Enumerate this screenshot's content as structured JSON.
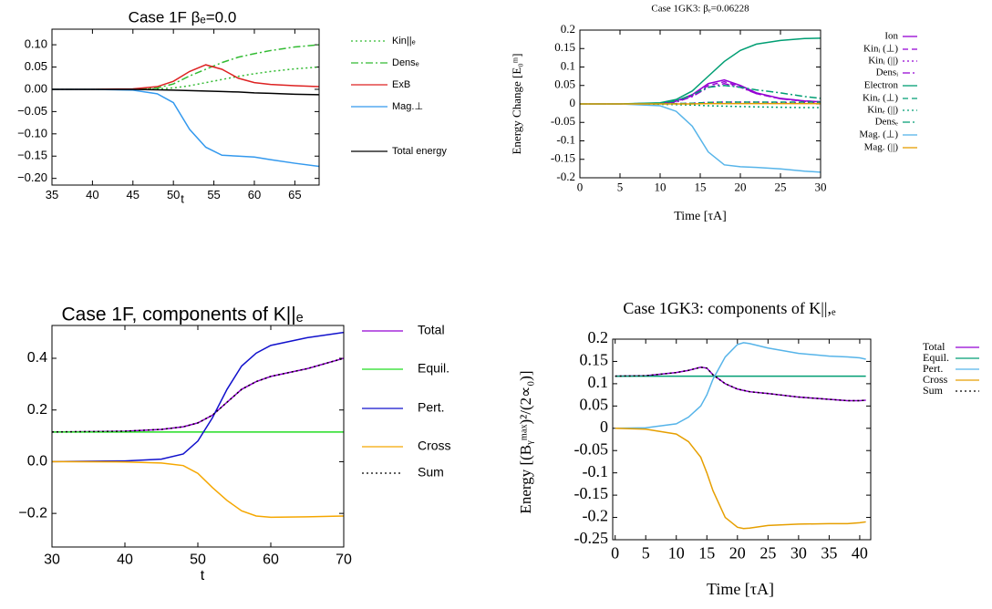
{
  "chart_data": [
    {
      "type": "line",
      "title": "Case 1F  βₑ=0.0",
      "xlabel": "t",
      "x": [
        35,
        40,
        45,
        48,
        50,
        52,
        54,
        56,
        58,
        60,
        62,
        65,
        68
      ],
      "xlim": [
        35,
        68
      ],
      "xticks": [
        35,
        40,
        45,
        50,
        55,
        60,
        65
      ],
      "ylim": [
        -0.215,
        0.135
      ],
      "yticks": [
        {
          "value": -0.2,
          "label": "−0.20"
        },
        {
          "value": -0.15,
          "label": "−0.15"
        },
        {
          "value": -0.1,
          "label": "−0.10"
        },
        {
          "value": -0.05,
          "label": "−0.05"
        },
        {
          "value": 0,
          "label": "0.00"
        },
        {
          "value": 0.05,
          "label": "0.05"
        },
        {
          "value": 0.1,
          "label": "0.10"
        }
      ],
      "legend": "right",
      "series": [
        {
          "name": "Kin||ₑ",
          "color": "#33bb33",
          "dash": "dotted",
          "values": [
            0,
            0,
            0,
            0.001,
            0.003,
            0.008,
            0.015,
            0.022,
            0.029,
            0.035,
            0.04,
            0.046,
            0.05
          ]
        },
        {
          "name": "Densₑ",
          "color": "#33bb33",
          "dash": "dashdot",
          "values": [
            0,
            0,
            0,
            0.003,
            0.012,
            0.03,
            0.045,
            0.06,
            0.072,
            0.08,
            0.087,
            0.095,
            0.1
          ]
        },
        {
          "name": "ExB",
          "color": "#dd2222",
          "dash": "solid",
          "values": [
            0,
            0,
            0.001,
            0.006,
            0.018,
            0.04,
            0.055,
            0.045,
            0.025,
            0.015,
            0.011,
            0.008,
            0.006
          ]
        },
        {
          "name": "Mag.⊥",
          "color": "#3399ee",
          "dash": "solid",
          "values": [
            0,
            0,
            -0.002,
            -0.01,
            -0.03,
            -0.09,
            -0.13,
            -0.148,
            -0.15,
            -0.152,
            -0.158,
            -0.166,
            -0.173
          ]
        },
        {
          "name": "Total energy",
          "color": "#000000",
          "dash": "solid",
          "values": [
            0,
            0,
            0,
            -0.001,
            -0.002,
            -0.003,
            -0.004,
            -0.005,
            -0.006,
            -0.008,
            -0.009,
            -0.011,
            -0.012
          ]
        }
      ]
    },
    {
      "type": "line",
      "title": "Case 1GK3: βₑ=0.06228",
      "xlabel": "Time [τA]",
      "ylabel": "Energy Change [E₀ᵐ]",
      "x": [
        0,
        5,
        10,
        12,
        14,
        16,
        18,
        20,
        22,
        25,
        28,
        30
      ],
      "xlim": [
        0,
        30
      ],
      "xticks": [
        0,
        5,
        10,
        15,
        20,
        25,
        30
      ],
      "ylim": [
        -0.2,
        0.2
      ],
      "yticks": [
        -0.2,
        -0.15,
        -0.1,
        -0.05,
        0,
        0.05,
        0.1,
        0.15,
        0.2
      ],
      "legend": "right",
      "series": [
        {
          "name": "Ion",
          "color": "#9400d3",
          "dash": "solid",
          "values": [
            0,
            0,
            0.002,
            0.008,
            0.025,
            0.055,
            0.065,
            0.05,
            0.03,
            0.015,
            0.008,
            0.006
          ]
        },
        {
          "name": "Kinᵢ (⊥)",
          "color": "#9400d3",
          "dash": "dashed",
          "values": [
            0,
            0,
            0.002,
            0.007,
            0.022,
            0.05,
            0.06,
            0.047,
            0.028,
            0.014,
            0.007,
            0.005
          ]
        },
        {
          "name": "Kinᵢ (||)",
          "color": "#9400d3",
          "dash": "dotted",
          "values": [
            0,
            0,
            0,
            0.001,
            0.002,
            0.004,
            0.005,
            0.005,
            0.005,
            0.004,
            0.004,
            0.004
          ]
        },
        {
          "name": "Densᵢ",
          "color": "#9400d3",
          "dash": "dashdot",
          "values": [
            0,
            0,
            0.001,
            0.005,
            0.02,
            0.045,
            0.055,
            0.045,
            0.028,
            0.014,
            0.008,
            0.006
          ]
        },
        {
          "name": "Electron",
          "color": "#009e73",
          "dash": "solid",
          "values": [
            0,
            0,
            0.003,
            0.012,
            0.035,
            0.075,
            0.115,
            0.145,
            0.162,
            0.172,
            0.177,
            0.178
          ]
        },
        {
          "name": "Kinₑ (⊥)",
          "color": "#009e73",
          "dash": "dashed",
          "values": [
            0,
            0,
            0,
            0.001,
            0.002,
            0.004,
            0.005,
            0.005,
            0.005,
            0.005,
            0.005,
            0.005
          ]
        },
        {
          "name": "Kinₑ (||)",
          "color": "#009e73",
          "dash": "dotted",
          "values": [
            0,
            0,
            -0.001,
            -0.002,
            -0.003,
            -0.005,
            -0.006,
            -0.007,
            -0.008,
            -0.009,
            -0.01,
            -0.01
          ]
        },
        {
          "name": "Densₑ",
          "color": "#009e73",
          "dash": "dashdot",
          "values": [
            0,
            0,
            0.002,
            0.008,
            0.025,
            0.045,
            0.05,
            0.045,
            0.038,
            0.03,
            0.02,
            0.015
          ]
        },
        {
          "name": "Mag. (⊥)",
          "color": "#56b4e9",
          "dash": "solid",
          "values": [
            0,
            0,
            -0.005,
            -0.02,
            -0.06,
            -0.13,
            -0.165,
            -0.17,
            -0.172,
            -0.176,
            -0.182,
            -0.185
          ]
        },
        {
          "name": "Mag. (||)",
          "color": "#e69f00",
          "dash": "solid",
          "values": [
            0,
            0,
            0,
            0,
            0,
            0.001,
            0.001,
            0.001,
            0.001,
            0.001,
            0.001,
            0.001
          ]
        }
      ]
    },
    {
      "type": "line",
      "title": "Case 1F, components of K||ₑ",
      "xlabel": "t",
      "x": [
        30,
        40,
        45,
        48,
        50,
        52,
        54,
        56,
        58,
        60,
        65,
        70
      ],
      "xlim": [
        30,
        70
      ],
      "xticks": [
        30,
        40,
        50,
        60,
        70
      ],
      "ylim": [
        -0.33,
        0.527
      ],
      "yticks": [
        {
          "value": -0.2,
          "label": "−0.2"
        },
        {
          "value": 0,
          "label": "0.0"
        },
        0.2,
        0.4
      ],
      "legend": "right",
      "series": [
        {
          "name": "Total",
          "color": "#9400d3",
          "dash": "solid",
          "values": [
            0.115,
            0.118,
            0.125,
            0.135,
            0.15,
            0.18,
            0.23,
            0.28,
            0.31,
            0.33,
            0.36,
            0.4
          ]
        },
        {
          "name": "Equil.",
          "color": "#22dd22",
          "dash": "solid",
          "values": [
            0.115,
            0.115,
            0.115,
            0.115,
            0.115,
            0.115,
            0.115,
            0.115,
            0.115,
            0.115,
            0.115,
            0.115
          ]
        },
        {
          "name": "Pert.",
          "color": "#1111cc",
          "dash": "solid",
          "values": [
            0,
            0.003,
            0.01,
            0.03,
            0.08,
            0.17,
            0.28,
            0.37,
            0.42,
            0.45,
            0.48,
            0.5
          ]
        },
        {
          "name": "Cross",
          "color": "#f5a700",
          "dash": "solid",
          "values": [
            0,
            -0.001,
            -0.005,
            -0.015,
            -0.045,
            -0.1,
            -0.15,
            -0.19,
            -0.21,
            -0.215,
            -0.213,
            -0.21
          ]
        },
        {
          "name": "Sum",
          "color": "#000000",
          "dash": "dotted",
          "values": [
            0.115,
            0.118,
            0.125,
            0.135,
            0.15,
            0.18,
            0.23,
            0.28,
            0.31,
            0.33,
            0.36,
            0.4
          ]
        }
      ]
    },
    {
      "type": "line",
      "title": "Case 1GK3: components of K||,ₑ",
      "xlabel": "Time [τA]",
      "ylabel": "Energy [(Bᵧᵐᵃˣ)²/(2∝₀)]",
      "x": [
        0,
        5,
        10,
        12,
        14,
        15,
        16,
        18,
        20,
        21,
        22,
        25,
        30,
        35,
        38,
        40,
        41
      ],
      "xlim": [
        -0.4,
        41.8
      ],
      "xticks": [
        0,
        5,
        10,
        15,
        20,
        25,
        30,
        35,
        40
      ],
      "ylim": [
        -0.25,
        0.2
      ],
      "yticks": [
        -0.25,
        -0.2,
        -0.15,
        -0.1,
        -0.05,
        0,
        0.05,
        0.1,
        0.15,
        0.2
      ],
      "legend": "top right",
      "series": [
        {
          "name": "Total",
          "color": "#9400d3",
          "dash": "solid",
          "values": [
            0.117,
            0.118,
            0.125,
            0.13,
            0.137,
            0.135,
            0.12,
            0.1,
            0.088,
            0.085,
            0.082,
            0.078,
            0.07,
            0.065,
            0.062,
            0.062,
            0.063
          ]
        },
        {
          "name": "Equil.",
          "color": "#009e73",
          "dash": "solid",
          "values": [
            0.117,
            0.117,
            0.117,
            0.117,
            0.117,
            0.117,
            0.117,
            0.117,
            0.117,
            0.117,
            0.117,
            0.117,
            0.117,
            0.117,
            0.117,
            0.117,
            0.117
          ]
        },
        {
          "name": "Pert.",
          "color": "#56b4e9",
          "dash": "solid",
          "values": [
            0,
            0.001,
            0.01,
            0.025,
            0.05,
            0.075,
            0.11,
            0.16,
            0.188,
            0.192,
            0.19,
            0.18,
            0.168,
            0.162,
            0.16,
            0.158,
            0.155
          ]
        },
        {
          "name": "Cross",
          "color": "#e69f00",
          "dash": "solid",
          "values": [
            0,
            -0.002,
            -0.013,
            -0.03,
            -0.065,
            -0.1,
            -0.14,
            -0.2,
            -0.222,
            -0.225,
            -0.224,
            -0.218,
            -0.215,
            -0.214,
            -0.214,
            -0.212,
            -0.21
          ]
        },
        {
          "name": "Sum",
          "color": "#000000",
          "dash": "dotted",
          "values": [
            0.117,
            0.118,
            0.125,
            0.13,
            0.137,
            0.135,
            0.12,
            0.1,
            0.088,
            0.085,
            0.082,
            0.078,
            0.07,
            0.065,
            0.062,
            0.062,
            0.063
          ]
        }
      ]
    }
  ]
}
